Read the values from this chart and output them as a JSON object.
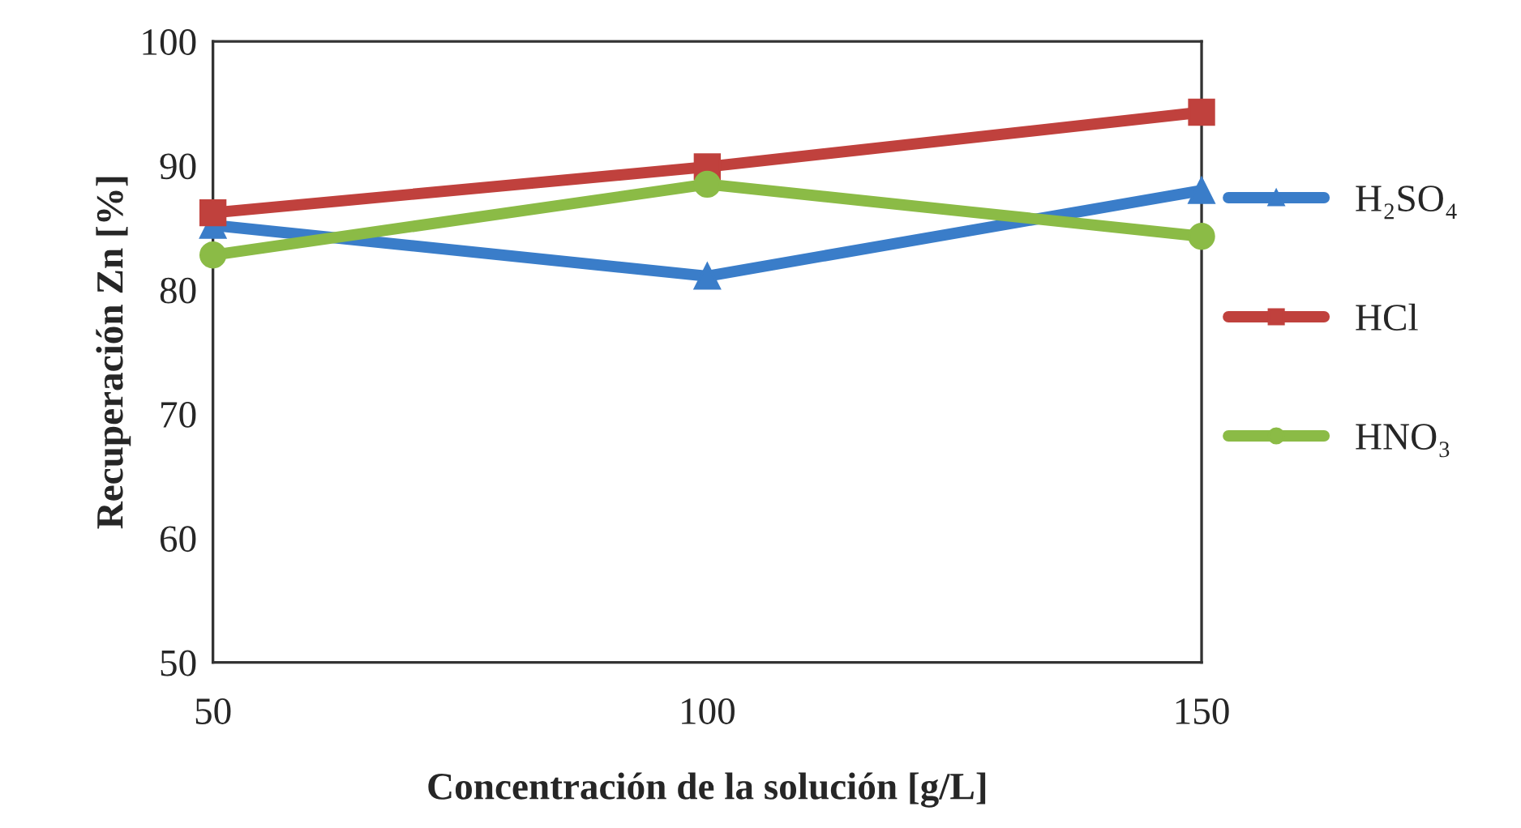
{
  "chart_data": {
    "type": "line",
    "xlabel": "Concentración de la solución [g/L]",
    "ylabel": "Recuperación Zn [%]",
    "x": [
      50,
      100,
      150
    ],
    "series": [
      {
        "name": "H₂SO₄",
        "color": "#3a7dc9",
        "values": [
          85.2,
          81.1,
          88.0
        ],
        "marker": "triangle"
      },
      {
        "name": "HCl",
        "color": "#c0413d",
        "values": [
          86.2,
          89.9,
          94.3
        ],
        "marker": "square"
      },
      {
        "name": "HNO₃",
        "color": "#8bbb46",
        "values": [
          82.8,
          88.5,
          84.3
        ],
        "marker": "circle"
      }
    ],
    "xlim": [
      50,
      150
    ],
    "xticks": [
      50,
      100,
      150
    ],
    "ylim": [
      50,
      100
    ],
    "yticks": [
      50,
      60,
      70,
      80,
      90,
      100
    ],
    "grid": false,
    "legend": "right",
    "line_style": "solid"
  }
}
